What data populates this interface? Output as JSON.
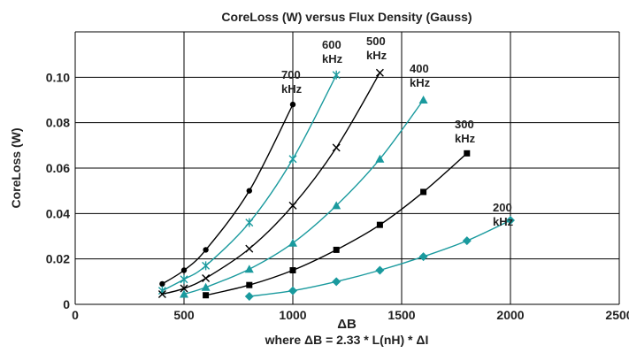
{
  "chart_data": {
    "type": "line",
    "title": "CoreLoss (W) versus Flux Density (Gauss)",
    "xlabel": "ΔB",
    "xlabel2": "where ΔB = 2.33 * L(nH) * ΔI",
    "ylabel": "CoreLoss (W)",
    "xlim": [
      0,
      2500
    ],
    "ylim": [
      0,
      0.12
    ],
    "xticks": [
      0,
      500,
      1000,
      1500,
      2000,
      2500
    ],
    "yticks": [
      0,
      0.02,
      0.04,
      0.06,
      0.08,
      0.1
    ],
    "ytick_labels": [
      "0",
      "0.02",
      "0.04",
      "0.06",
      "0.08",
      "0.10"
    ],
    "grid": true,
    "series": [
      {
        "label_line1": "700",
        "label_line2": "kHz",
        "color": "#000000",
        "marker": "circle",
        "x": [
          400,
          500,
          600,
          800,
          1000
        ],
        "y": [
          0.009,
          0.015,
          0.024,
          0.05,
          0.088
        ]
      },
      {
        "label_line1": "600",
        "label_line2": "kHz",
        "color": "#1a9a9e",
        "marker": "asterisk",
        "x": [
          400,
          500,
          600,
          800,
          1000,
          1200
        ],
        "y": [
          0.006,
          0.011,
          0.017,
          0.036,
          0.064,
          0.101
        ]
      },
      {
        "label_line1": "500",
        "label_line2": "kHz",
        "color": "#000000",
        "marker": "x",
        "x": [
          400,
          500,
          600,
          800,
          1000,
          1200,
          1400
        ],
        "y": [
          0.0045,
          0.007,
          0.0115,
          0.0245,
          0.0435,
          0.069,
          0.102
        ]
      },
      {
        "label_line1": "400",
        "label_line2": "kHz",
        "color": "#1a9a9e",
        "marker": "triangle",
        "x": [
          500,
          600,
          800,
          1000,
          1200,
          1400,
          1600
        ],
        "y": [
          0.0045,
          0.0075,
          0.0155,
          0.027,
          0.0435,
          0.064,
          0.09
        ]
      },
      {
        "label_line1": "300",
        "label_line2": "kHz",
        "color": "#000000",
        "marker": "square",
        "x": [
          600,
          800,
          1000,
          1200,
          1400,
          1600,
          1800
        ],
        "y": [
          0.004,
          0.0085,
          0.015,
          0.024,
          0.035,
          0.0495,
          0.0665
        ]
      },
      {
        "label_line1": "200",
        "label_line2": "kHz",
        "color": "#1a9a9e",
        "marker": "diamond",
        "x": [
          800,
          1000,
          1200,
          1400,
          1600,
          1800,
          2000
        ],
        "y": [
          0.0035,
          0.006,
          0.01,
          0.015,
          0.021,
          0.028,
          0.037
        ]
      }
    ]
  }
}
